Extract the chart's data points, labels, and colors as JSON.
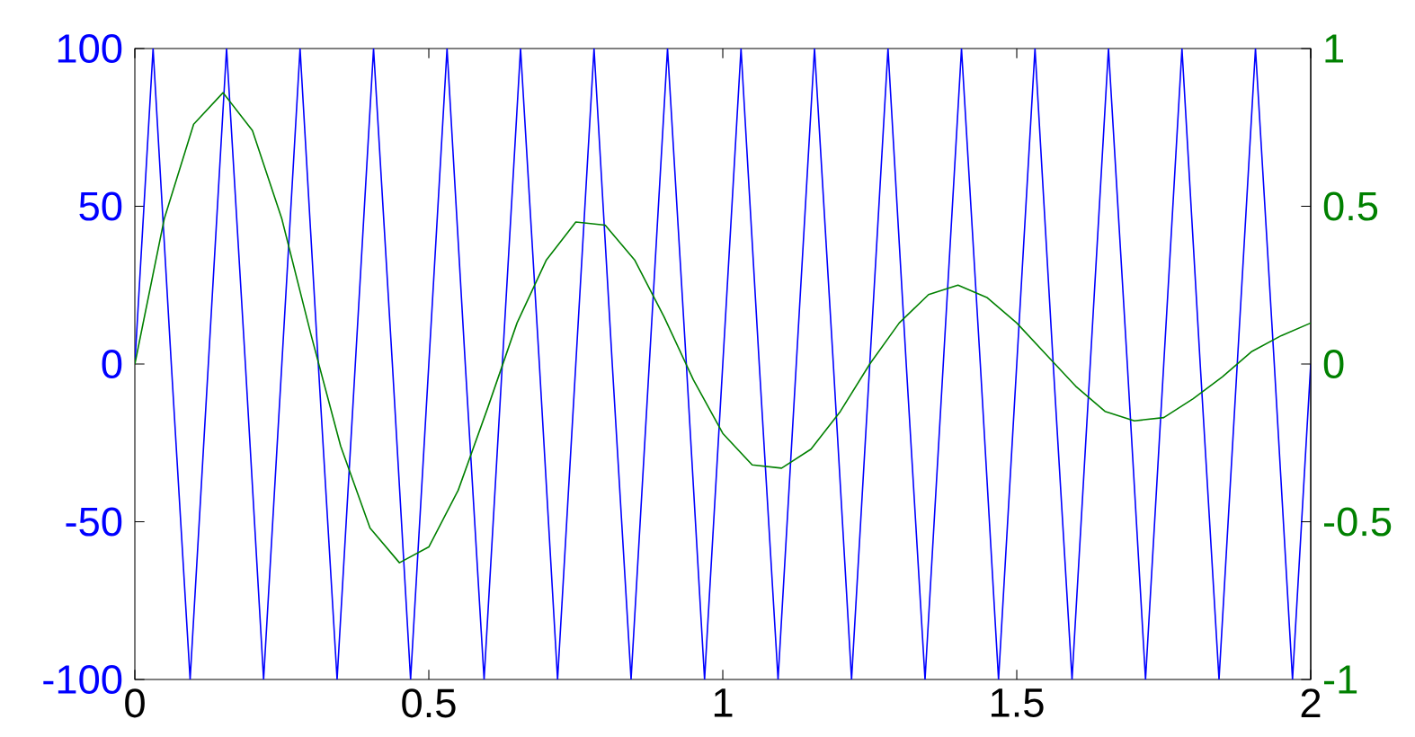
{
  "chart_data": {
    "type": "line",
    "series": [
      {
        "color": "#0000ff",
        "x": [
          0,
          0.031,
          0.062,
          0.094,
          0.125,
          0.156,
          0.188,
          0.219,
          0.25,
          0.281,
          0.312,
          0.344,
          0.375,
          0.406,
          0.438,
          0.469,
          0.5,
          0.531,
          0.562,
          0.594,
          0.625,
          0.656,
          0.688,
          0.719,
          0.75,
          0.781,
          0.812,
          0.844,
          0.875,
          0.906,
          0.938,
          0.969,
          1,
          1.031,
          1.062,
          1.094,
          1.125,
          1.156,
          1.188,
          1.219,
          1.25,
          1.281,
          1.312,
          1.344,
          1.375,
          1.406,
          1.438,
          1.469,
          1.5,
          1.531,
          1.562,
          1.594,
          1.625,
          1.656,
          1.688,
          1.719,
          1.75,
          1.781,
          1.812,
          1.844,
          1.875,
          1.906,
          1.938,
          1.969,
          2
        ],
        "values": [
          0,
          100,
          0,
          -100,
          0,
          100,
          0,
          -100,
          0,
          100,
          0,
          -100,
          0,
          100,
          0,
          -100,
          0,
          100,
          0,
          -100,
          0,
          100,
          0,
          -100,
          0,
          100,
          0,
          -100,
          0,
          100,
          0,
          -100,
          0,
          100,
          0,
          -100,
          0,
          100,
          0,
          -100,
          0,
          100,
          0,
          -100,
          0,
          100,
          0,
          -100,
          0,
          100,
          0,
          -100,
          0,
          100,
          0,
          -100,
          0,
          100,
          0,
          -100,
          0,
          100,
          0,
          -100,
          0
        ]
      },
      {
        "color": "#008000",
        "axis": "y2",
        "x": [
          0,
          0.05,
          0.1,
          0.15,
          0.2,
          0.25,
          0.3,
          0.35,
          0.4,
          0.45,
          0.5,
          0.55,
          0.6,
          0.65,
          0.7,
          0.75,
          0.8,
          0.85,
          0.9,
          0.95,
          1,
          1.05,
          1.1,
          1.15,
          1.2,
          1.25,
          1.3,
          1.35,
          1.4,
          1.45,
          1.5,
          1.55,
          1.6,
          1.65,
          1.7,
          1.75,
          1.8,
          1.85,
          1.9,
          1.95,
          2
        ],
        "values": [
          0,
          0.46,
          0.76,
          0.86,
          0.74,
          0.46,
          0.09,
          -0.26,
          -0.52,
          -0.63,
          -0.58,
          -0.4,
          -0.14,
          0.13,
          0.33,
          0.45,
          0.44,
          0.33,
          0.15,
          -0.05,
          -0.22,
          -0.32,
          -0.33,
          -0.27,
          -0.15,
          0,
          0.13,
          0.22,
          0.25,
          0.21,
          0.13,
          0.03,
          -0.07,
          -0.15,
          -0.18,
          -0.17,
          -0.11,
          -0.04,
          0.04,
          0.09,
          0.13
        ]
      }
    ],
    "xlim": [
      0,
      2
    ],
    "xticks": [
      0,
      0.5,
      1,
      1.5,
      2
    ],
    "ylim": [
      -100,
      100
    ],
    "yticks": [
      -100,
      -50,
      0,
      50,
      100
    ],
    "y2lim": [
      -1,
      1
    ],
    "y2ticks": [
      -1,
      -0.5,
      0,
      0.5,
      1
    ]
  }
}
